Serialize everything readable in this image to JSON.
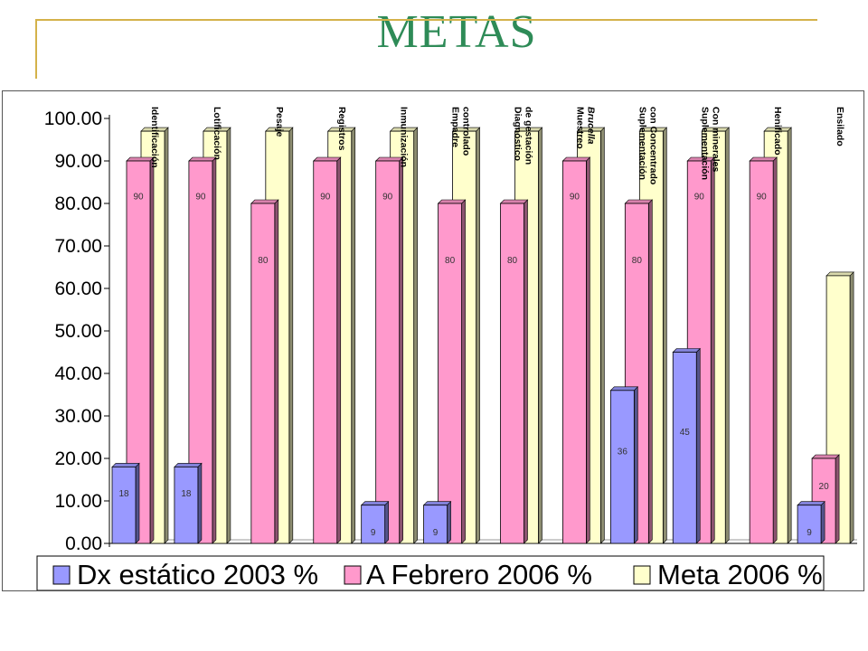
{
  "slide": {
    "title": "METAS"
  },
  "chart_data": {
    "type": "bar",
    "categories": [
      [
        "Identificación"
      ],
      [
        "Lotificación"
      ],
      [
        "Pesaje"
      ],
      [
        "Registros"
      ],
      [
        "Inmunización"
      ],
      [
        "Empadre",
        "controlado"
      ],
      [
        "Diagnóstico",
        "de gestación"
      ],
      [
        "Muestreo",
        "Brucella"
      ],
      [
        "Suplementación",
        "con  Concentrado"
      ],
      [
        "Suplementación",
        "Con  minerales"
      ],
      [
        "Henificado"
      ],
      [
        "Ensilado"
      ]
    ],
    "series": [
      {
        "name": "Dx estático 2003 %",
        "color": "#9999ff",
        "values": [
          18,
          18,
          null,
          null,
          9,
          9,
          null,
          null,
          36,
          45,
          null,
          9
        ],
        "labels": [
          "18",
          "18",
          "",
          "",
          "9",
          "9",
          "",
          "",
          "36",
          "45",
          "",
          "9"
        ]
      },
      {
        "name": "A Febrero 2006 %",
        "color": "#ff99cc",
        "values": [
          90,
          90,
          80,
          90,
          90,
          80,
          80,
          90,
          80,
          90,
          90,
          20
        ],
        "labels": [
          "90",
          "90",
          "80",
          "90",
          "90",
          "80",
          "80",
          "90",
          "80",
          "90",
          "90",
          "20"
        ]
      },
      {
        "name": "Meta 2006 %",
        "color": "#ffffcc",
        "values": [
          97,
          97,
          97,
          97,
          97,
          97,
          97,
          97,
          97,
          97,
          97,
          63
        ],
        "labels": [
          "",
          "",
          "",
          "",
          "",
          "",
          "",
          "",
          "",
          "",
          "",
          ""
        ]
      }
    ],
    "y_ticks": [
      "0.00",
      "10.00",
      "20.00",
      "30.00",
      "40.00",
      "50.00",
      "60.00",
      "70.00",
      "80.00",
      "90.00",
      "100.00"
    ],
    "ylim": [
      0,
      100
    ],
    "legend_position": "bottom",
    "grid": false
  }
}
